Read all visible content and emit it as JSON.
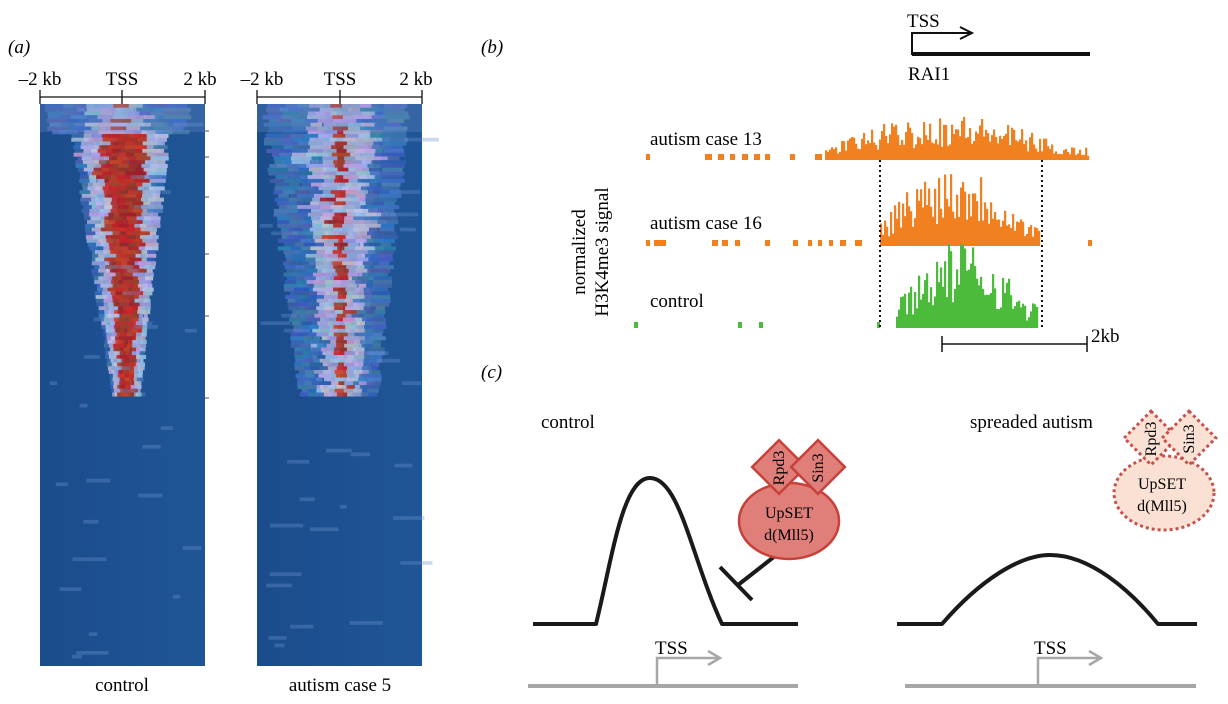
{
  "panel_a": {
    "label": "(a)",
    "axis": {
      "left": "–2 kb",
      "center": "TSS",
      "right": "2 kb"
    },
    "heatmap_captions": [
      "control",
      "autism case 5"
    ]
  },
  "panel_b": {
    "label": "(b)",
    "gene": {
      "tss": "TSS",
      "name": "RAI1"
    },
    "ylabel_line1": "normalized",
    "ylabel_line2": "H3K4me3 signal",
    "tracks": [
      "autism case 13",
      "autism case 16",
      "control"
    ],
    "scale_label": "2kb"
  },
  "panel_c": {
    "label": "(c)",
    "left": {
      "title": "control",
      "tss": "TSS"
    },
    "right": {
      "title": "spreaded autism",
      "tss": "TSS"
    },
    "complex": {
      "rpd3": "Rpd3",
      "sin3": "Sin3",
      "upset1": "UpSET",
      "upset2": "d(Mll5)"
    }
  },
  "colors": {
    "heatmap_bg": "#1f4e8c",
    "heatmap_hot": "#b0202a",
    "autism_track": "#f08020",
    "control_track": "#4cbb3c",
    "complex_fill": "#e07f7a",
    "complex_stroke": "#c8403a",
    "complex_faded_fill": "#fbe1d4",
    "complex_faded_stroke": "#c8504a"
  }
}
